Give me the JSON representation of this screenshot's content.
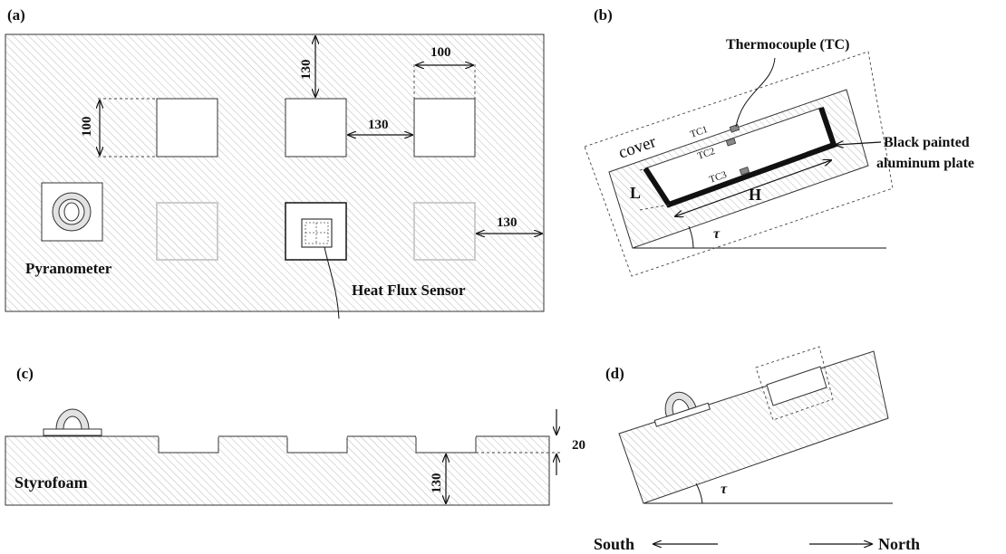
{
  "panel_labels": {
    "a": "(a)",
    "b": "(b)",
    "c": "(c)",
    "d": "(d)"
  },
  "panel_a": {
    "dim_cell_top": "100",
    "dim_top_gap": "130",
    "dim_left_cell": "100",
    "dim_between": "130",
    "dim_right_edge": "130",
    "pyranometer_label": "Pyranometer",
    "sensor_label": "Heat Flux Sensor"
  },
  "panel_b": {
    "thermocouple_label": "Thermocouple (TC)",
    "cover_label": "cover",
    "tc1": "TC1",
    "tc2": "TC2",
    "tc3": "TC3",
    "plate_line1": "Black painted",
    "plate_line2": "aluminum plate",
    "L": "L",
    "H": "H",
    "tau": "τ"
  },
  "panel_c": {
    "styrofoam_label": "Styrofoam",
    "dim_depth": "20",
    "dim_thickness": "130"
  },
  "panel_d": {
    "tau": "τ"
  },
  "directions": {
    "south": "South",
    "north": "North"
  }
}
